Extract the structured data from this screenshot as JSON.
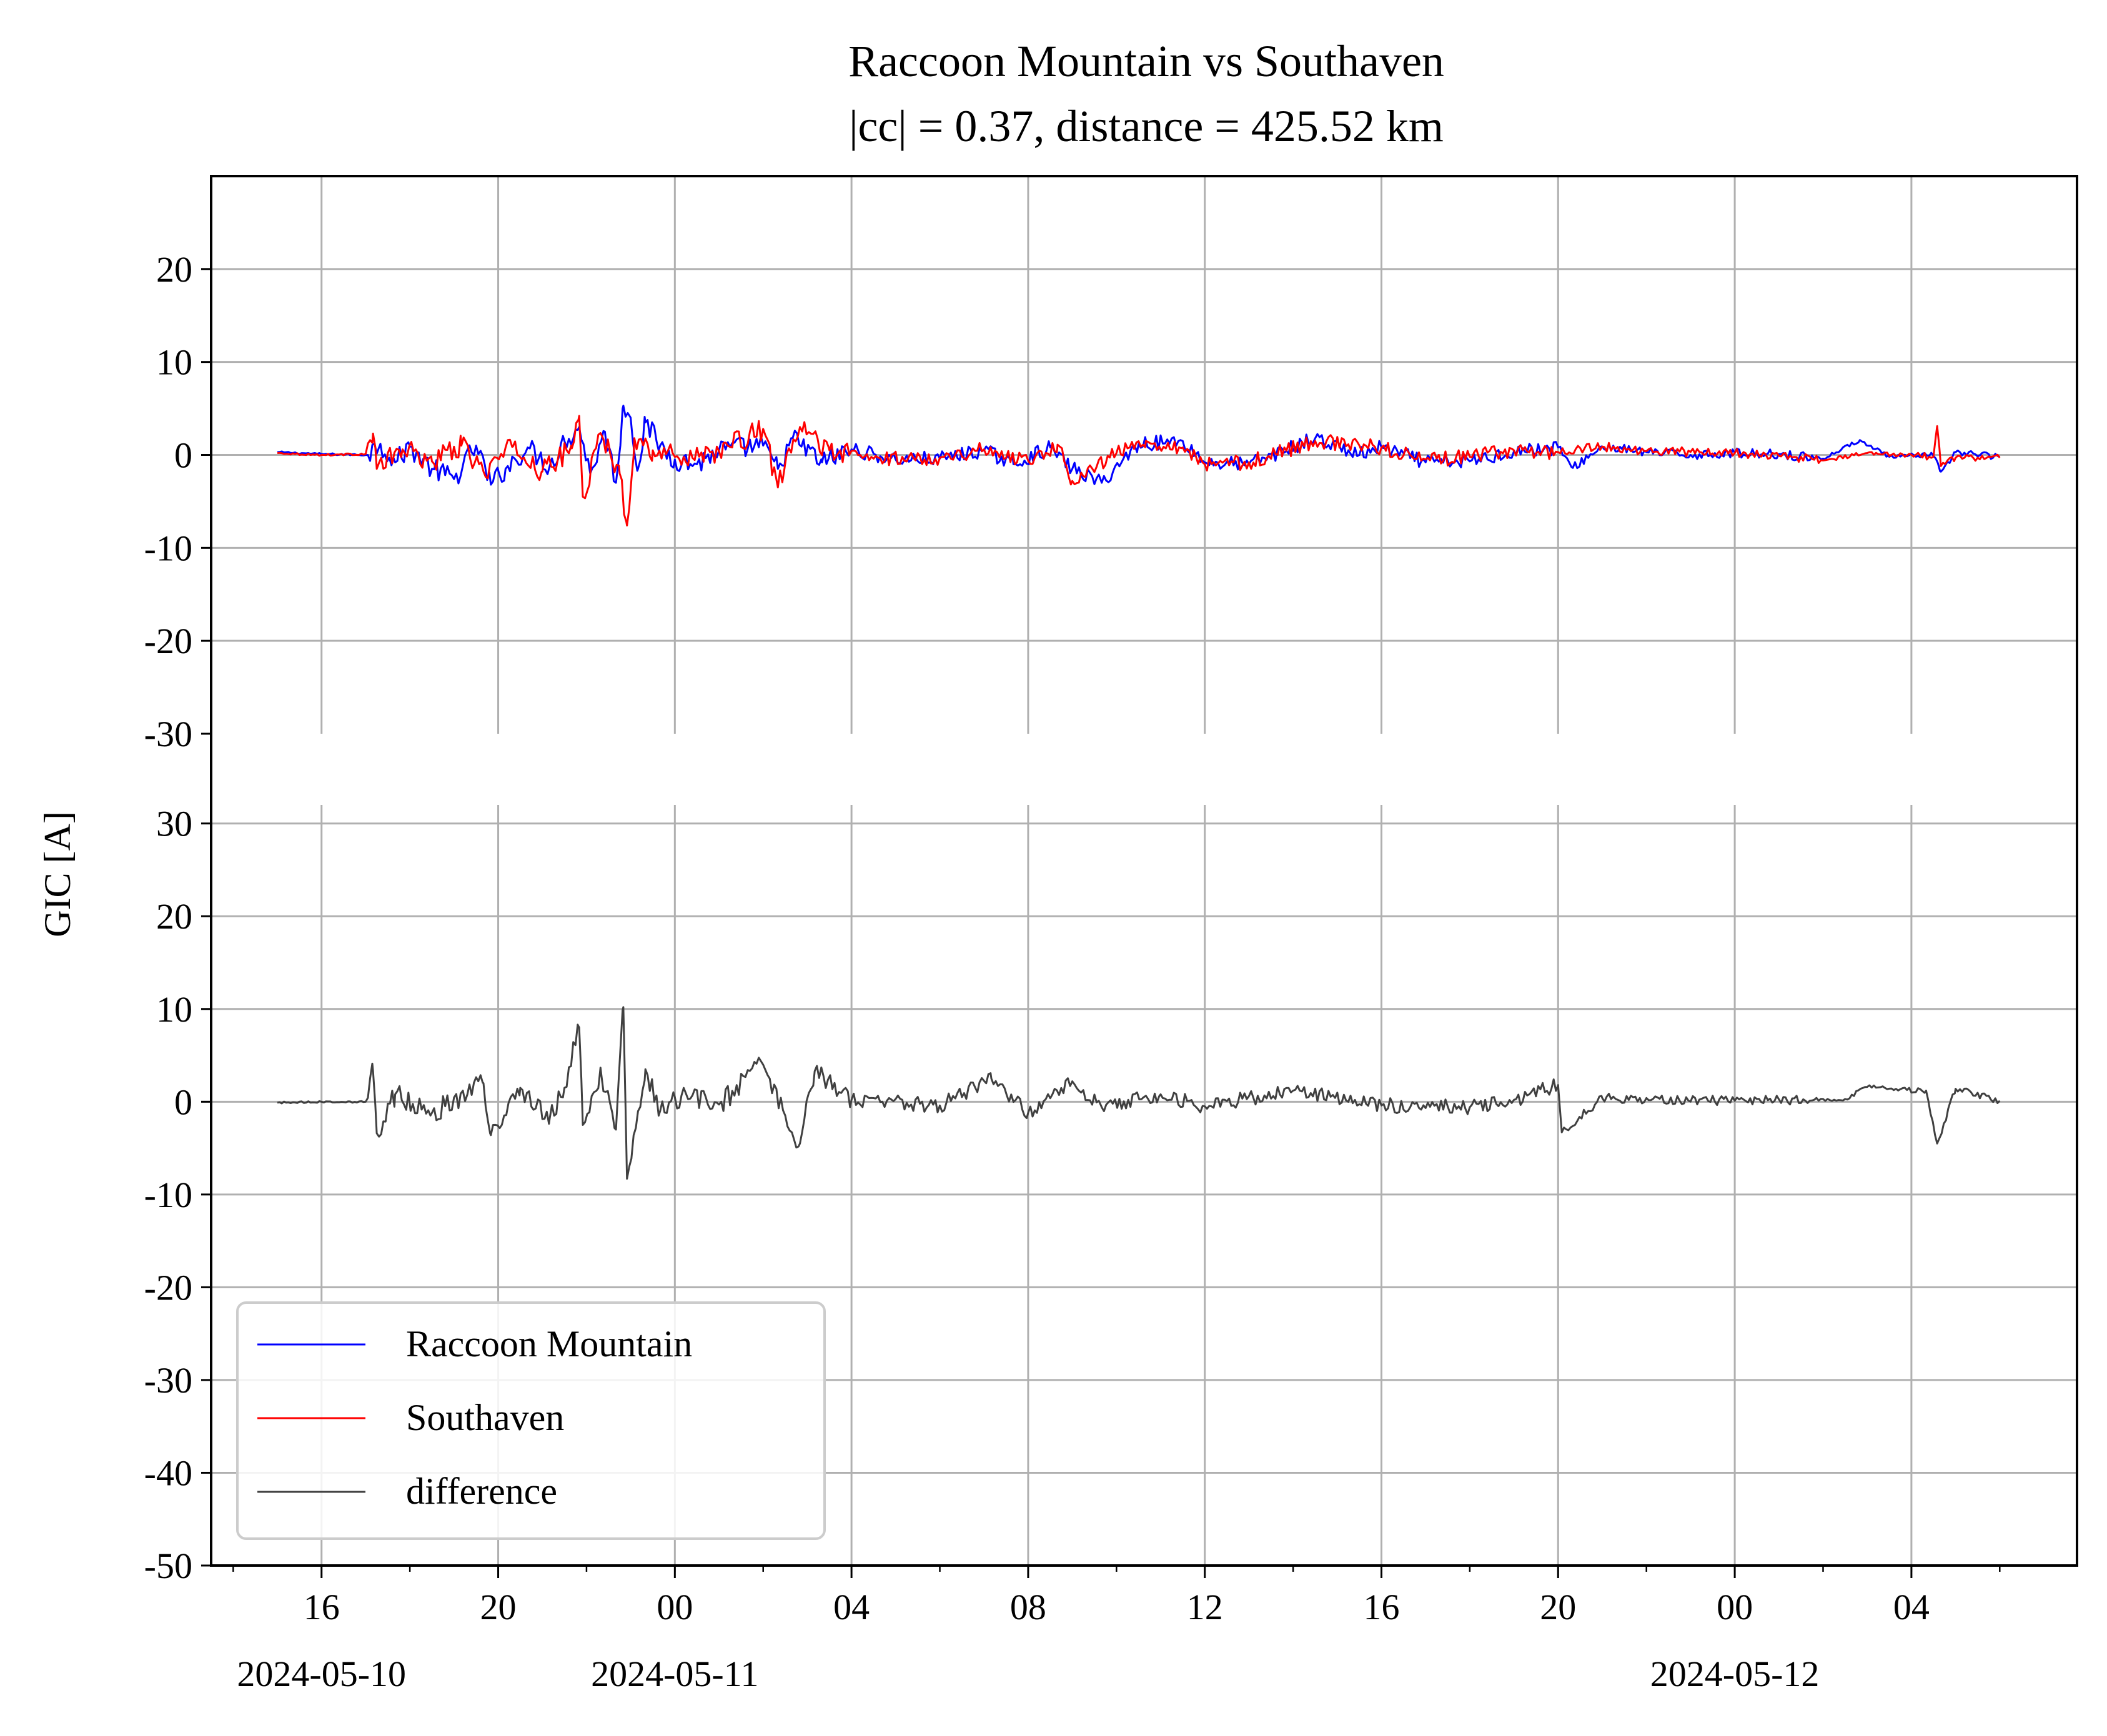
{
  "chart_data": {
    "type": "line",
    "title": "Raccoon Mountain vs Southaven",
    "subtitle": "|cc| = 0.37, distance = 425.52 km",
    "ylabel": "GIC [A]",
    "x_range": [
      "2024-05-10T15:00",
      "2024-05-12T06:00"
    ],
    "x_axis_limits": [
      "2024-05-10T13:30",
      "2024-05-12T07:45"
    ],
    "x_major_ticks": [
      {
        "label": "16",
        "time": "2024-05-10T16:00"
      },
      {
        "label": "20",
        "time": "2024-05-10T20:00"
      },
      {
        "label": "00",
        "time": "2024-05-11T00:00"
      },
      {
        "label": "04",
        "time": "2024-05-11T04:00"
      },
      {
        "label": "08",
        "time": "2024-05-11T08:00"
      },
      {
        "label": "12",
        "time": "2024-05-11T12:00"
      },
      {
        "label": "16",
        "time": "2024-05-11T16:00"
      },
      {
        "label": "20",
        "time": "2024-05-11T20:00"
      },
      {
        "label": "00",
        "time": "2024-05-12T00:00"
      },
      {
        "label": "04",
        "time": "2024-05-12T04:00"
      }
    ],
    "date_labels": [
      {
        "label": "2024-05-10",
        "time": "2024-05-10T16:00"
      },
      {
        "label": "2024-05-11",
        "time": "2024-05-11T00:00"
      },
      {
        "label": "2024-05-12",
        "time": "2024-05-12T00:00"
      }
    ],
    "panels": [
      {
        "name": "top",
        "ylim": [
          -30,
          30
        ],
        "yticks": [
          {
            "value": 20,
            "label": "20"
          },
          {
            "value": 10,
            "label": "10"
          },
          {
            "value": 0,
            "label": "0"
          },
          {
            "value": -10,
            "label": "-10"
          },
          {
            "value": -20,
            "label": "-20"
          },
          {
            "value": -30,
            "label": "-30"
          }
        ],
        "series": [
          {
            "name": "Raccoon Mountain",
            "color": "#0000ff",
            "points": [
              [
                "2024-05-10T15:00",
                0.3
              ],
              [
                "2024-05-10T16:00",
                0.1
              ],
              [
                "2024-05-10T17:00",
                0.0
              ],
              [
                "2024-05-10T17:20",
                1.2
              ],
              [
                "2024-05-10T17:40",
                -0.8
              ],
              [
                "2024-05-10T18:00",
                0.9
              ],
              [
                "2024-05-10T18:30",
                -1.5
              ],
              [
                "2024-05-10T19:00",
                -2.6
              ],
              [
                "2024-05-10T19:30",
                1.0
              ],
              [
                "2024-05-10T19:50",
                -3.2
              ],
              [
                "2024-05-10T20:10",
                -1.5
              ],
              [
                "2024-05-10T20:40",
                0.8
              ],
              [
                "2024-05-10T21:10",
                -1.2
              ],
              [
                "2024-05-10T21:30",
                1.5
              ],
              [
                "2024-05-10T21:50",
                3.0
              ],
              [
                "2024-05-10T22:05",
                -2.0
              ],
              [
                "2024-05-10T22:25",
                2.5
              ],
              [
                "2024-05-10T22:40",
                -3.0
              ],
              [
                "2024-05-10T22:50",
                5.3
              ],
              [
                "2024-05-10T23:00",
                4.0
              ],
              [
                "2024-05-10T23:10",
                -1.5
              ],
              [
                "2024-05-10T23:20",
                3.5
              ],
              [
                "2024-05-10T23:40",
                1.0
              ],
              [
                "2024-05-11T00:00",
                -0.5
              ],
              [
                "2024-05-11T00:30",
                -1.0
              ],
              [
                "2024-05-11T01:00",
                0.5
              ],
              [
                "2024-05-11T02:00",
                1.0
              ],
              [
                "2024-05-11T02:20",
                -1.5
              ],
              [
                "2024-05-11T02:40",
                1.8
              ],
              [
                "2024-05-11T03:20",
                -0.8
              ],
              [
                "2024-05-11T04:00",
                0.6
              ],
              [
                "2024-05-11T05:00",
                -0.5
              ],
              [
                "2024-05-11T06:00",
                -0.4
              ],
              [
                "2024-05-11T07:00",
                0.5
              ],
              [
                "2024-05-11T07:40",
                -1.0
              ],
              [
                "2024-05-11T08:30",
                0.8
              ],
              [
                "2024-05-11T09:00",
                -1.5
              ],
              [
                "2024-05-11T09:40",
                -3.0
              ],
              [
                "2024-05-11T10:30",
                1.2
              ],
              [
                "2024-05-11T11:30",
                1.5
              ],
              [
                "2024-05-11T12:00",
                -0.8
              ],
              [
                "2024-05-11T13:00",
                -1.0
              ],
              [
                "2024-05-11T14:30",
                1.8
              ],
              [
                "2024-05-11T15:30",
                0.0
              ],
              [
                "2024-05-11T16:00",
                0.8
              ],
              [
                "2024-05-11T17:00",
                -0.8
              ],
              [
                "2024-05-11T18:00",
                -0.7
              ],
              [
                "2024-05-11T19:00",
                0.4
              ],
              [
                "2024-05-11T20:00",
                0.8
              ],
              [
                "2024-05-11T20:20",
                -1.4
              ],
              [
                "2024-05-11T21:00",
                0.9
              ],
              [
                "2024-05-11T22:00",
                0.3
              ],
              [
                "2024-05-11T23:00",
                0.0
              ],
              [
                "2024-05-12T00:00",
                0.2
              ],
              [
                "2024-05-12T01:00",
                0.1
              ],
              [
                "2024-05-12T02:00",
                -0.4
              ],
              [
                "2024-05-12T02:50",
                1.6
              ],
              [
                "2024-05-12T03:30",
                -0.2
              ],
              [
                "2024-05-12T04:30",
                -0.1
              ],
              [
                "2024-05-12T04:40",
                -1.8
              ],
              [
                "2024-05-12T05:00",
                0.3
              ],
              [
                "2024-05-12T06:00",
                -0.2
              ]
            ]
          },
          {
            "name": "Southaven",
            "color": "#ff0000",
            "points": [
              [
                "2024-05-10T15:00",
                0.2
              ],
              [
                "2024-05-10T16:00",
                0.0
              ],
              [
                "2024-05-10T17:00",
                0.1
              ],
              [
                "2024-05-10T17:10",
                2.3
              ],
              [
                "2024-05-10T17:15",
                -1.5
              ],
              [
                "2024-05-10T17:50",
                0.6
              ],
              [
                "2024-05-10T18:30",
                -0.7
              ],
              [
                "2024-05-10T19:10",
                1.0
              ],
              [
                "2024-05-10T19:40",
                -1.8
              ],
              [
                "2024-05-10T20:20",
                0.9
              ],
              [
                "2024-05-10T21:00",
                -1.8
              ],
              [
                "2024-05-10T21:40",
                0.7
              ],
              [
                "2024-05-10T21:50",
                4.2
              ],
              [
                "2024-05-10T21:55",
                -4.5
              ],
              [
                "2024-05-10T22:20",
                2.2
              ],
              [
                "2024-05-10T22:45",
                -2.0
              ],
              [
                "2024-05-10T22:55",
                -7.6
              ],
              [
                "2024-05-10T23:05",
                1.8
              ],
              [
                "2024-05-10T23:30",
                0.5
              ],
              [
                "2024-05-11T00:00",
                -0.2
              ],
              [
                "2024-05-11T01:00",
                0.4
              ],
              [
                "2024-05-11T02:00",
                2.8
              ],
              [
                "2024-05-11T02:20",
                -3.5
              ],
              [
                "2024-05-11T02:50",
                3.0
              ],
              [
                "2024-05-11T03:30",
                0.5
              ],
              [
                "2024-05-11T04:30",
                -0.4
              ],
              [
                "2024-05-11T06:00",
                -0.3
              ],
              [
                "2024-05-11T07:00",
                0.6
              ],
              [
                "2024-05-11T08:00",
                -0.6
              ],
              [
                "2024-05-11T08:40",
                1.1
              ],
              [
                "2024-05-11T09:00",
                -2.8
              ],
              [
                "2024-05-11T10:00",
                0.2
              ],
              [
                "2024-05-11T10:40",
                1.5
              ],
              [
                "2024-05-11T11:30",
                0.8
              ],
              [
                "2024-05-11T12:00",
                -1.0
              ],
              [
                "2024-05-11T13:00",
                -0.8
              ],
              [
                "2024-05-11T14:30",
                1.5
              ],
              [
                "2024-05-11T16:00",
                0.8
              ],
              [
                "2024-05-11T17:00",
                -0.5
              ],
              [
                "2024-05-11T18:00",
                -0.2
              ],
              [
                "2024-05-11T19:00",
                0.5
              ],
              [
                "2024-05-11T20:00",
                0.3
              ],
              [
                "2024-05-11T21:00",
                0.9
              ],
              [
                "2024-05-11T22:00",
                0.4
              ],
              [
                "2024-05-12T00:00",
                0.2
              ],
              [
                "2024-05-12T01:00",
                -0.1
              ],
              [
                "2024-05-12T02:00",
                -0.6
              ],
              [
                "2024-05-12T03:00",
                0.2
              ],
              [
                "2024-05-12T04:30",
                -0.2
              ],
              [
                "2024-05-12T04:35",
                3.1
              ],
              [
                "2024-05-12T04:40",
                -1.2
              ],
              [
                "2024-05-12T05:00",
                -0.3
              ],
              [
                "2024-05-12T06:00",
                -0.3
              ]
            ]
          }
        ]
      },
      {
        "name": "bottom",
        "ylim": [
          -50,
          32
        ],
        "yticks": [
          {
            "value": 30,
            "label": "30"
          },
          {
            "value": 20,
            "label": "20"
          },
          {
            "value": 10,
            "label": "10"
          },
          {
            "value": 0,
            "label": "0"
          },
          {
            "value": -10,
            "label": "-10"
          },
          {
            "value": -20,
            "label": "-20"
          },
          {
            "value": -30,
            "label": "-30"
          },
          {
            "value": -40,
            "label": "-40"
          },
          {
            "value": -50,
            "label": "-50"
          }
        ],
        "series": [
          {
            "name": "difference",
            "color": "#404040",
            "points": [
              [
                "2024-05-10T15:00",
                -0.1
              ],
              [
                "2024-05-10T16:00",
                0.0
              ],
              [
                "2024-05-10T17:00",
                0.0
              ],
              [
                "2024-05-10T17:10",
                3.3
              ],
              [
                "2024-05-10T17:15",
                -3.4
              ],
              [
                "2024-05-10T17:40",
                0.8
              ],
              [
                "2024-05-10T18:30",
                -1.2
              ],
              [
                "2024-05-10T19:40",
                2.0
              ],
              [
                "2024-05-10T19:50",
                -3.6
              ],
              [
                "2024-05-10T20:30",
                1.5
              ],
              [
                "2024-05-10T21:10",
                -1.8
              ],
              [
                "2024-05-10T21:30",
                1.5
              ],
              [
                "2024-05-10T21:50",
                8.0
              ],
              [
                "2024-05-10T21:55",
                -2.5
              ],
              [
                "2024-05-10T22:20",
                3.0
              ],
              [
                "2024-05-10T22:40",
                -3.0
              ],
              [
                "2024-05-10T22:50",
                10.2
              ],
              [
                "2024-05-10T22:55",
                -8.3
              ],
              [
                "2024-05-10T23:20",
                3.5
              ],
              [
                "2024-05-10T23:40",
                -1.0
              ],
              [
                "2024-05-11T00:00",
                0.5
              ],
              [
                "2024-05-11T01:00",
                -0.3
              ],
              [
                "2024-05-11T02:00",
                4.0
              ],
              [
                "2024-05-11T02:30",
                -1.5
              ],
              [
                "2024-05-11T02:50",
                -4.5
              ],
              [
                "2024-05-11T03:10",
                3.3
              ],
              [
                "2024-05-11T04:00",
                0.2
              ],
              [
                "2024-05-11T06:00",
                -0.4
              ],
              [
                "2024-05-11T07:10",
                2.5
              ],
              [
                "2024-05-11T08:00",
                -1.2
              ],
              [
                "2024-05-11T09:00",
                2.2
              ],
              [
                "2024-05-11T09:40",
                -0.6
              ],
              [
                "2024-05-11T11:00",
                0.8
              ],
              [
                "2024-05-11T12:00",
                -0.5
              ],
              [
                "2024-05-11T14:00",
                1.2
              ],
              [
                "2024-05-11T16:00",
                -0.4
              ],
              [
                "2024-05-11T18:00",
                -0.6
              ],
              [
                "2024-05-11T19:00",
                0.2
              ],
              [
                "2024-05-11T20:00",
                1.8
              ],
              [
                "2024-05-11T20:05",
                -3.3
              ],
              [
                "2024-05-11T21:00",
                0.4
              ],
              [
                "2024-05-12T00:00",
                0.1
              ],
              [
                "2024-05-12T02:30",
                0.3
              ],
              [
                "2024-05-12T03:00",
                1.6
              ],
              [
                "2024-05-12T04:20",
                1.2
              ],
              [
                "2024-05-12T04:35",
                -4.5
              ],
              [
                "2024-05-12T05:00",
                1.4
              ],
              [
                "2024-05-12T06:00",
                0.1
              ]
            ]
          }
        ]
      }
    ],
    "legend": {
      "location": "lower-left",
      "entries": [
        {
          "label": "Raccoon Mountain",
          "color": "#0000ff"
        },
        {
          "label": "Southaven",
          "color": "#ff0000"
        },
        {
          "label": "difference",
          "color": "#404040"
        }
      ]
    },
    "grid": true
  }
}
